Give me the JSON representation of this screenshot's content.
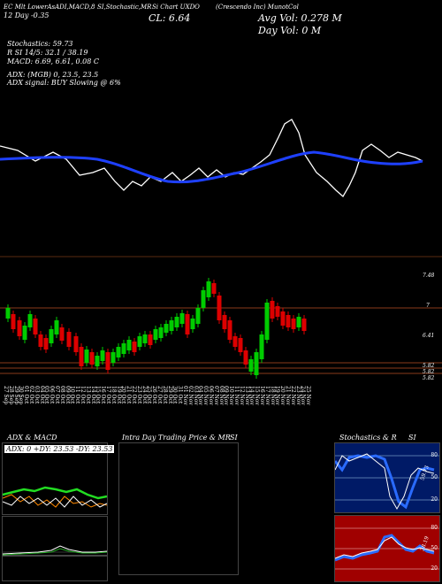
{
  "header": {
    "line1": "EC Mlt LowerAsADI,MACD,8",
    "line1b": "SI,Stochastic,MR",
    "line1c": "Si Chart UXDO",
    "line1d": "(Crescendo  Inc) MunotCol",
    "day_line": "12  Day  -0.35",
    "cl": "CL: 6.64",
    "avg_vol": "Avg Vol: 0.278   M",
    "day_vol": "Day Vol: 0   M",
    "stochastics": "Stochastics: 59.73",
    "rsi": "R                      SI 14/5: 32.1 / 38.19",
    "macd": "MACD: 6.69, 6.61, 0.08  C",
    "adx": "ADX:                                     (MGB) 0,  23.5,  23.5",
    "adx_signal": "ADX  signal:                                             BUY Slowing @ 6%"
  },
  "price_axis": {
    "labels": [
      "7.48",
      "7",
      "6.41",
      "5.82",
      "5.82",
      "5.82"
    ]
  },
  "dates": [
    "27 Sep",
    "28 Sep",
    "29 Sep",
    "30 Sep",
    "01 Oct",
    "02 Oct",
    "03 Oct",
    "04 Oct",
    "05 Oct",
    "06 Oct",
    "07 Oct",
    "08 Oct",
    "09 Oct",
    "10 Oct",
    "11 Oct",
    "12 Oct",
    "13 Oct",
    "14 Oct",
    "15 Oct",
    "16 Oct",
    "17 Oct",
    "18 Oct",
    "19 Oct",
    "20 Oct",
    "21 Oct",
    "22 Oct",
    "23 Oct",
    "24 Oct",
    "25 Oct",
    "26 Oct",
    "27 Oct",
    "28 Oct",
    "29 Oct",
    "30 Oct",
    "31 Oct",
    "01 Nov",
    "02 Nov",
    "03 Nov",
    "04 Nov",
    "05 Nov",
    "06 Nov",
    "07 Nov",
    "08 Nov",
    "09 Nov",
    "10 Nov",
    "11 Nov",
    "12 Nov",
    "13 Nov",
    "14 Nov",
    "15 Nov",
    "16 Nov",
    "17 Nov",
    "18 Nov",
    "19 Nov",
    "20 Nov",
    "21 Nov",
    "22 Nov",
    "23 Nov",
    "24 Nov",
    "25 Nov"
  ],
  "panels": {
    "adx_title": "ADX  & MACD",
    "adx_values": "ADX: 0  +DY: 23.53  -DY: 23.53",
    "intraday_title": "Intra  Day  Trading  Price   & MR",
    "intraday_si": "SI",
    "stoch_title": "Stochastics & R",
    "stoch_si": "SI",
    "stoch_levels": [
      "80",
      "50",
      "20"
    ],
    "rsi_levels": [
      "80",
      "50",
      "20"
    ],
    "stoch_value": "59.73",
    "rsi_value": "38.19"
  },
  "colors": {
    "background": "#000000",
    "ma_line": "#1e40ff",
    "bull": "#00cc00",
    "bear": "#dd0000",
    "level_line": "#8a3a1a",
    "adx_green": "#22dd22",
    "adx_orange": "#ff8a00",
    "stoch_bg": "#001a66",
    "rsi_bg": "#a00000"
  }
}
